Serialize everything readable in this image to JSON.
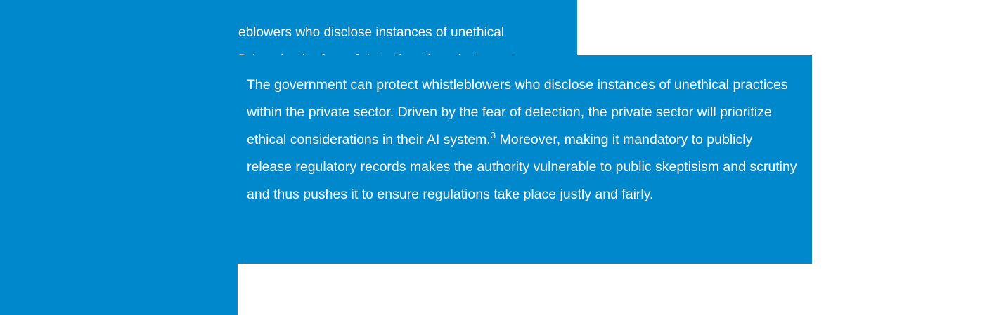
{
  "theme": {
    "accent": "#0088cc",
    "text_color": "#ffffff",
    "page_background": "#ffffff"
  },
  "background_fragment": {
    "line_1": "eblowers who disclose instances of unethical",
    "line_2": "Driven by the fear of detection, the private sector"
  },
  "card": {
    "text_before_footnote": "The government can protect whistleblowers who disclose instances of unethical practices within the private sector. Driven by the fear of detection, the private sector will prioritize ethical considerations in their AI system.",
    "footnote_marker": "3",
    "text_after_footnote": " Moreover, making it mandatory to publicly release regulatory records makes the authority vulnerable to public skeptisism and scrutiny and thus pushes it to ensure regulations take place justly and fairly."
  }
}
